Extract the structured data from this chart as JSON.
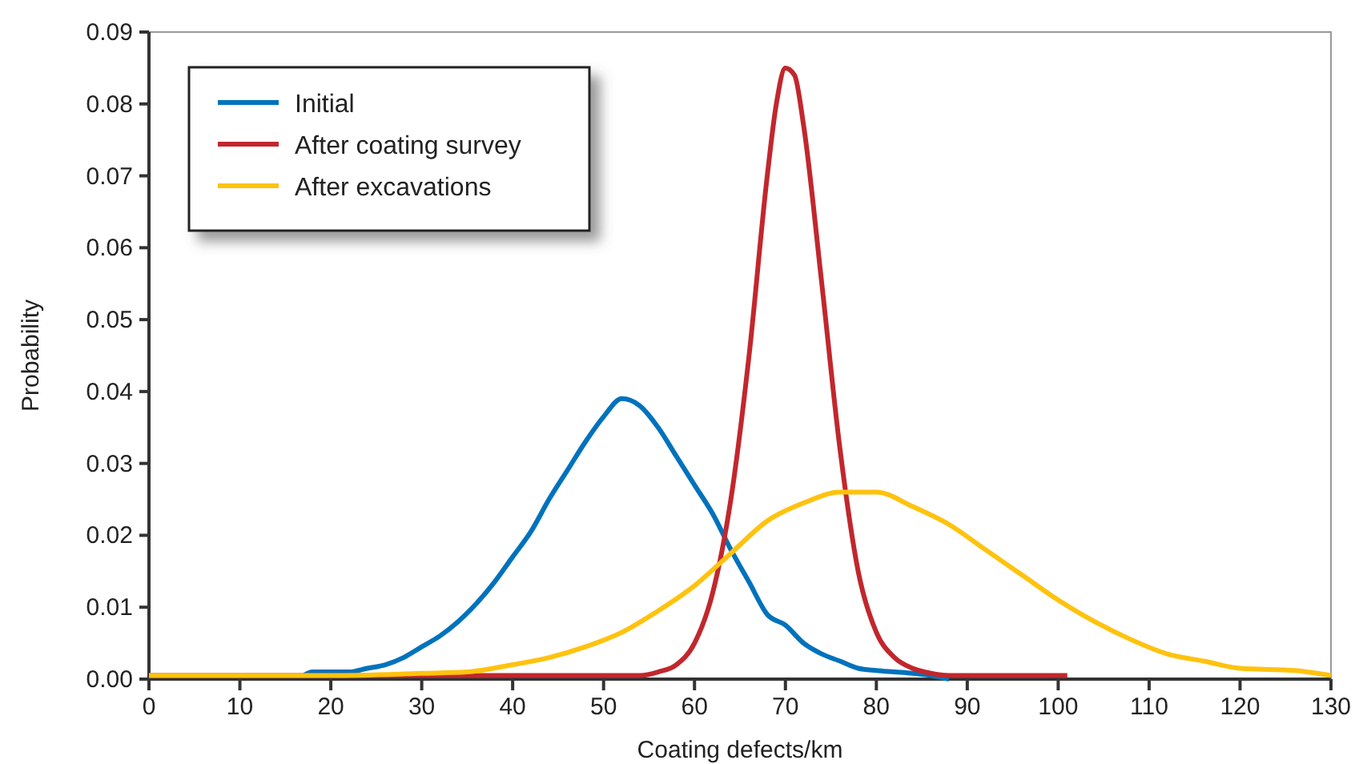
{
  "chart_data": {
    "type": "line",
    "xlabel": "Coating defects/km",
    "ylabel": "Probability",
    "xlim": [
      0,
      130
    ],
    "ylim": [
      0,
      0.09
    ],
    "xticks": [
      0,
      10,
      20,
      30,
      40,
      50,
      60,
      70,
      80,
      90,
      100,
      110,
      120,
      130
    ],
    "yticks": [
      {
        "value": 0,
        "label": "0.00"
      },
      {
        "value": 0.01,
        "label": "0.01"
      },
      {
        "value": 0.02,
        "label": "0.02"
      },
      {
        "value": 0.03,
        "label": "0.03"
      },
      {
        "value": 0.04,
        "label": "0.04"
      },
      {
        "value": 0.05,
        "label": "0.05"
      },
      {
        "value": 0.06,
        "label": "0.06"
      },
      {
        "value": 0.07,
        "label": "0.07"
      },
      {
        "value": 0.08,
        "label": "0.08"
      },
      {
        "value": 0.09,
        "label": "0.09"
      }
    ],
    "grid": false,
    "legend": "top left",
    "marker": "none",
    "line_style": "solid",
    "series": [
      {
        "name": "Initial",
        "color": "#0072bc",
        "x": [
          17,
          18,
          22,
          24,
          26,
          28,
          30,
          32,
          34,
          36,
          38,
          40,
          42,
          44,
          46,
          48,
          50,
          52,
          54,
          56,
          58,
          60,
          62,
          64,
          66,
          68,
          70,
          72,
          74,
          76,
          78,
          80,
          82,
          84,
          86,
          88
        ],
        "values": [
          0.0005,
          0.001,
          0.001,
          0.0015,
          0.002,
          0.003,
          0.0045,
          0.006,
          0.008,
          0.0105,
          0.0135,
          0.017,
          0.0205,
          0.025,
          0.029,
          0.033,
          0.0365,
          0.039,
          0.038,
          0.035,
          0.031,
          0.027,
          0.023,
          0.018,
          0.0135,
          0.009,
          0.0075,
          0.005,
          0.0035,
          0.0025,
          0.0015,
          0.0012,
          0.001,
          0.0008,
          0.0005,
          0
        ]
      },
      {
        "name": "After coating survey",
        "color": "#c1272d",
        "x": [
          0,
          54,
          56,
          58,
          60,
          62,
          64,
          66,
          68,
          69,
          70,
          71,
          72,
          74,
          76,
          78,
          80,
          82,
          84,
          86,
          88,
          101
        ],
        "values": [
          0.0005,
          0.0005,
          0.001,
          0.002,
          0.005,
          0.012,
          0.025,
          0.045,
          0.07,
          0.08,
          0.085,
          0.084,
          0.077,
          0.055,
          0.032,
          0.015,
          0.0065,
          0.003,
          0.0015,
          0.0008,
          0.0005,
          0.0005
        ]
      },
      {
        "name": "After excavations",
        "color": "#ffc20e",
        "x": [
          0,
          20,
          30,
          35,
          40,
          44,
          48,
          52,
          56,
          60,
          64,
          68,
          72,
          76,
          80,
          84,
          88,
          92,
          96,
          100,
          104,
          108,
          112,
          116,
          120,
          126,
          130
        ],
        "values": [
          0.0005,
          0.0005,
          0.0008,
          0.001,
          0.002,
          0.003,
          0.0045,
          0.0065,
          0.0095,
          0.013,
          0.0175,
          0.022,
          0.0245,
          0.026,
          0.026,
          0.024,
          0.0215,
          0.018,
          0.0145,
          0.011,
          0.008,
          0.0055,
          0.0035,
          0.0025,
          0.0015,
          0.0012,
          0.0005
        ]
      }
    ]
  }
}
